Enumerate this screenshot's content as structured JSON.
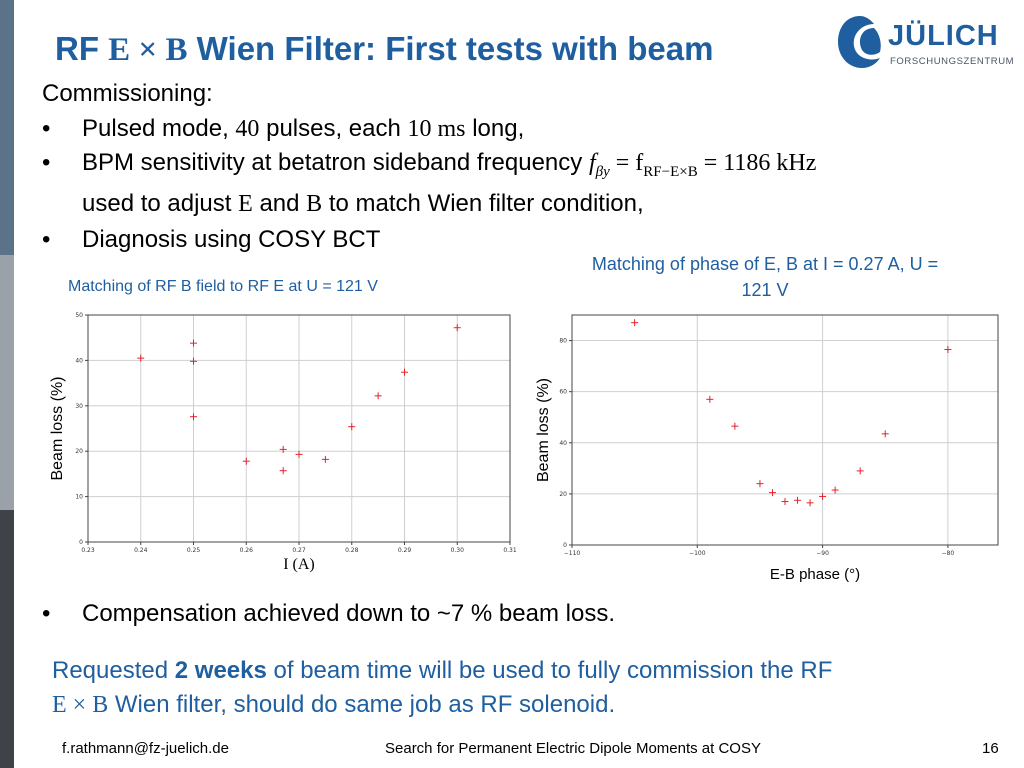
{
  "title": {
    "prefix": "RF",
    "math": "E × B",
    "suffix": "Wien Filter: First tests with beam"
  },
  "logo": {
    "name": "JÜLICH",
    "subtitle": "FORSCHUNGSZENTRUM"
  },
  "content": {
    "heading": "Commissioning:",
    "bullet1": {
      "a": "Pulsed mode, ",
      "m1": "40",
      "b": " pulses, each ",
      "m2": "10 ms",
      "c": " long,"
    },
    "bullet2": {
      "a": "BPM sensitivity at betatron sideband frequency ",
      "m1": "f",
      "m1sub": "βy",
      "m2": " = f",
      "m2sub": "RF−E×B",
      "m3": " = 1186 kHz",
      "line2a": "used to adjust ",
      "e": "E",
      "line2b": " and ",
      "b": "B",
      "line2c": " to match Wien filter condition,"
    },
    "bullet3": "Diagnosis using COSY BCT",
    "bullet4": "Compensation achieved down to ~7 % beam loss."
  },
  "requested": {
    "a": "Requested ",
    "bold": "2 weeks",
    "b": " of beam time will be used to fully commission the RF",
    "math": "E × B",
    "c": " Wien filter, should do same job as RF solenoid."
  },
  "footer": {
    "email": "f.rathmann@fz-juelich.de",
    "center": "Search for Permanent Electric Dipole Moments at COSY",
    "page": "16"
  },
  "chart_data": [
    {
      "type": "scatter",
      "title": "Matching of RF B field to RF E at U = 121 V",
      "xlabel": "I (A)",
      "ylabel": "Beam loss (%)",
      "xlim": [
        0.23,
        0.31
      ],
      "ylim": [
        0,
        50
      ],
      "xticks": [
        "0.23",
        "0.24",
        "0.25",
        "0.26",
        "0.27",
        "0.28",
        "0.29",
        "0.30",
        "0.31"
      ],
      "yticks": [
        "0",
        "10",
        "20",
        "30",
        "40",
        "50"
      ],
      "marker_color": "#e8202a",
      "grid": true,
      "x": [
        0.24,
        0.25,
        0.25,
        0.25,
        0.26,
        0.267,
        0.267,
        0.27,
        0.275,
        0.28,
        0.285,
        0.29,
        0.3
      ],
      "y": [
        40.5,
        43.8,
        39.8,
        27.6,
        17.8,
        20.4,
        15.7,
        19.3,
        18.2,
        25.4,
        32.2,
        37.4,
        47.2
      ]
    },
    {
      "type": "scatter",
      "title": "Matching of phase of E, B at I = 0.27 A, U = 121 V",
      "xlabel": "E-B phase (°)",
      "ylabel": "Beam loss (%)",
      "xlim": [
        -110,
        -76
      ],
      "ylim": [
        0,
        90
      ],
      "xticks": [
        "−110",
        "−100",
        "−90",
        "−80"
      ],
      "yticks": [
        "0",
        "20",
        "40",
        "60",
        "80"
      ],
      "marker_color": "#e8202a",
      "grid": true,
      "x": [
        -105,
        -99,
        -97,
        -95,
        -94,
        -93,
        -92,
        -91,
        -90,
        -89,
        -87,
        -85,
        -80
      ],
      "y": [
        87,
        57,
        46.5,
        24,
        20.5,
        17,
        17.5,
        16.5,
        19,
        21.5,
        29,
        43.5,
        76.5
      ]
    }
  ]
}
